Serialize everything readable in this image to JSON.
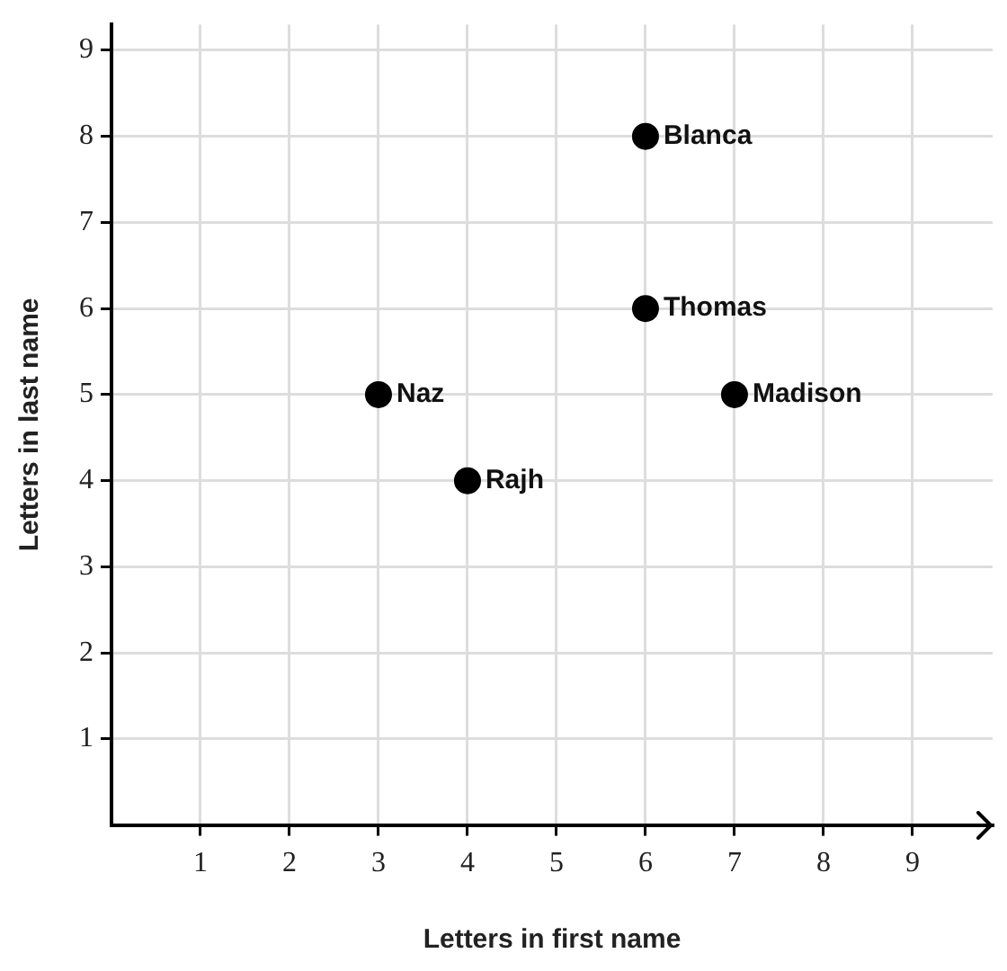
{
  "chart_data": {
    "type": "scatter",
    "xlabel": "Letters in first name",
    "ylabel": "Letters in last name",
    "series": [
      {
        "color": "#000000",
        "x": [
          6,
          6,
          3,
          7,
          4
        ],
        "values": [
          8,
          6,
          5,
          5,
          4
        ]
      }
    ],
    "xlim": [
      0,
      9.9
    ],
    "ylim": [
      0,
      9.3
    ],
    "xticks": [
      1,
      2,
      3,
      4,
      5,
      6,
      7,
      8,
      9
    ],
    "yticks": [
      1,
      2,
      3,
      4,
      5,
      6,
      7,
      8,
      9
    ],
    "grid": true,
    "legend": false,
    "marker": "circle",
    "annotations": [
      {
        "text": "Blanca",
        "x": 6,
        "y": 8
      },
      {
        "text": "Thomas",
        "x": 6,
        "y": 6
      },
      {
        "text": "Naz",
        "x": 3,
        "y": 5
      },
      {
        "text": "Madison",
        "x": 7,
        "y": 5
      },
      {
        "text": "Rajh",
        "x": 4,
        "y": 4
      }
    ]
  }
}
